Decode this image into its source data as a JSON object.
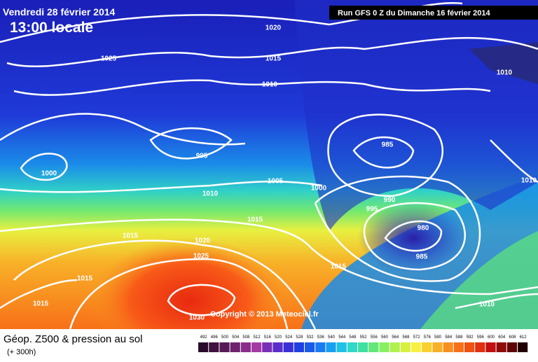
{
  "header": {
    "date": "Vendredi 28 février 2014",
    "time": "13:00 locale",
    "run": "Run GFS 0 Z du Dimanche 16 février 2014"
  },
  "map": {
    "isobar_labels": [
      "1020",
      "1025",
      "1015",
      "1010",
      "995",
      "1000",
      "1010",
      "1005",
      "1000",
      "985",
      "990",
      "995",
      "980",
      "985",
      "1010",
      "1010",
      "1015",
      "1015",
      "1020",
      "1025",
      "1015",
      "1015",
      "1030",
      "1010",
      "1015"
    ],
    "copyright": "Copyright © 2013 Meteociel.fr"
  },
  "footer": {
    "title": "Géop. Z500 & pression au sol",
    "lead": "(+ 300h)",
    "scale": {
      "values": [
        492,
        496,
        500,
        504,
        508,
        512,
        516,
        520,
        524,
        528,
        532,
        536,
        540,
        544,
        548,
        552,
        556,
        560,
        564,
        568,
        572,
        576,
        580,
        584,
        588,
        592,
        596,
        600,
        604,
        608,
        612
      ],
      "colors": [
        "#2b0b2b",
        "#3f123f",
        "#561a56",
        "#6e236e",
        "#8a2d8a",
        "#a43aa4",
        "#7a2fb8",
        "#5a2fc8",
        "#3a2fd6",
        "#1f3fe0",
        "#1a5ae8",
        "#1a7cf0",
        "#1aa0f0",
        "#20c0e8",
        "#30d8c8",
        "#40e0a0",
        "#60e878",
        "#88f060",
        "#b0f050",
        "#d8f040",
        "#f8f040",
        "#f8d030",
        "#f8b028",
        "#f89020",
        "#f87018",
        "#f05010",
        "#e03010",
        "#c01010",
        "#900a0a",
        "#600505",
        "#200000"
      ]
    }
  }
}
